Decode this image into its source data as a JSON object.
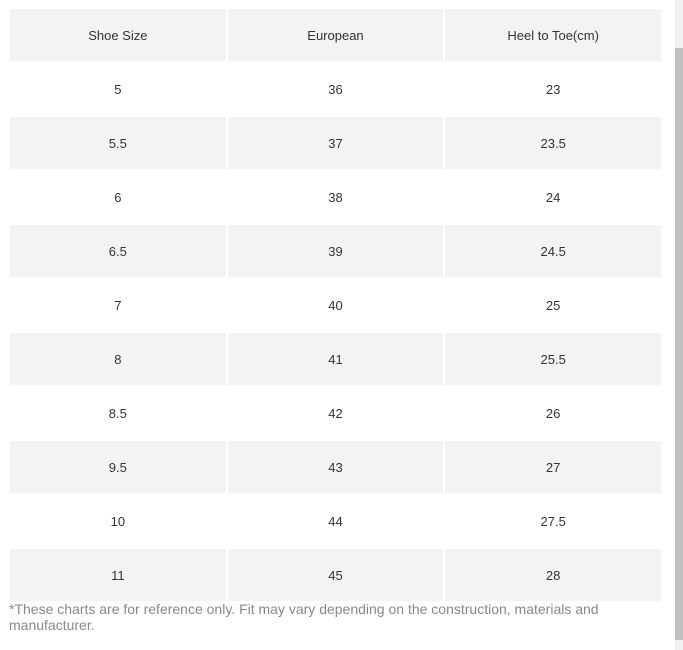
{
  "table": {
    "headers": [
      "Shoe Size",
      "European",
      "Heel to Toe(cm)"
    ],
    "rows": [
      [
        "5",
        "36",
        "23"
      ],
      [
        "5.5",
        "37",
        "23.5"
      ],
      [
        "6",
        "38",
        "24"
      ],
      [
        "6.5",
        "39",
        "24.5"
      ],
      [
        "7",
        "40",
        "25"
      ],
      [
        "8",
        "41",
        "25.5"
      ],
      [
        "8.5",
        "42",
        "26"
      ],
      [
        "9.5",
        "43",
        "27"
      ],
      [
        "10",
        "44",
        "27.5"
      ],
      [
        "11",
        "45",
        "28"
      ]
    ]
  },
  "footnote": "*These charts are for reference only. Fit may vary depending on the construction, materials and manufacturer.",
  "colors": {
    "shaded_row": "#f3f3f3",
    "plain_row": "#ffffff",
    "text": "#333333",
    "footnote_text": "#888888"
  }
}
